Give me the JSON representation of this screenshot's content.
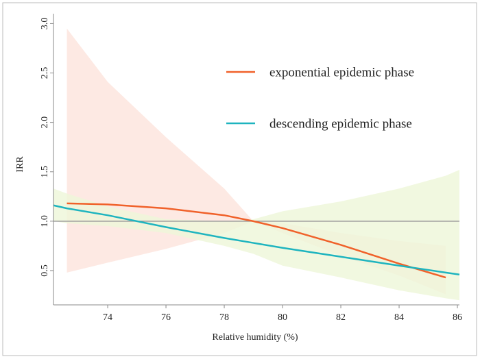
{
  "chart_data": {
    "type": "line",
    "xlabel": "Relative humidity (%)",
    "ylabel": "IRR",
    "x": [
      72.14,
      72.6,
      74,
      76,
      78,
      79,
      80,
      82,
      84,
      85.6,
      86.07
    ],
    "series": [
      {
        "name": "exponential epidemic phase",
        "color": "#f0612a",
        "band_color": "#fde3dc",
        "values": [
          null,
          1.18,
          1.17,
          1.13,
          1.06,
          1.0,
          0.93,
          0.76,
          0.57,
          0.43,
          null
        ],
        "lower": [
          null,
          0.48,
          0.58,
          0.72,
          0.88,
          1.0,
          0.88,
          0.65,
          0.45,
          0.26,
          null
        ],
        "upper": [
          null,
          2.95,
          2.41,
          1.85,
          1.33,
          1.0,
          0.98,
          0.88,
          0.8,
          0.75,
          null
        ]
      },
      {
        "name": "descending epidemic phase",
        "color": "#1eb4bf",
        "band_color": "#eef6d8",
        "values": [
          1.16,
          1.13,
          1.06,
          0.94,
          0.83,
          0.78,
          0.73,
          0.64,
          0.55,
          0.48,
          0.46
        ],
        "lower": [
          1.0,
          0.98,
          0.95,
          0.88,
          0.75,
          0.67,
          0.55,
          0.43,
          0.3,
          0.22,
          0.2
        ],
        "upper": [
          1.33,
          1.28,
          1.15,
          1.02,
          1.0,
          1.02,
          1.1,
          1.2,
          1.33,
          1.46,
          1.52
        ]
      }
    ],
    "hline": 1.0,
    "xlim": [
      72.14,
      86.07
    ],
    "ylim": [
      0.153,
      3.1
    ],
    "xticks": [
      74,
      76,
      78,
      80,
      82,
      84,
      86
    ],
    "yticks": [
      0.5,
      {
        "value": 1.0,
        "label": "1.0"
      },
      1.5,
      {
        "value": 2.0,
        "label": "2.0"
      },
      2.5,
      {
        "value": 3.0,
        "label": "3.0"
      }
    ],
    "legend": "upper right"
  }
}
